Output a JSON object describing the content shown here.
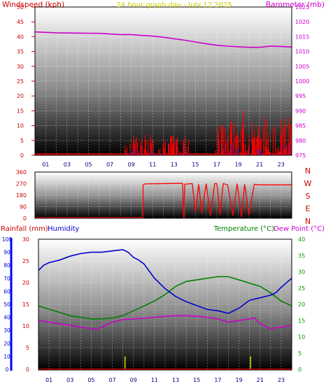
{
  "page_title": "24 hour graph day - July 12 2025",
  "labels": {
    "windspeed": "Windspeed (kph)",
    "barometer": "Barometer (mb)",
    "rainfall": "Rainfall (mm)",
    "humidity": "Humidity",
    "temperature": "Temperature (°C)",
    "dewpoint": "Dew Point (°C)"
  },
  "colors": {
    "windspeed": "#cc0000",
    "barometer": "#cc00cc",
    "humidity": "#0000cc",
    "temperature": "#008000",
    "dewpoint": "#cc00cc",
    "rainfall": "#cc0000",
    "title": "#cccc00",
    "tick_green": "#009900"
  },
  "x_hour_labels": [
    "01",
    "03",
    "05",
    "07",
    "09",
    "11",
    "13",
    "15",
    "17",
    "19",
    "21",
    "23"
  ],
  "chart_data": [
    {
      "type": "line",
      "name": "wind-barometer",
      "xlim": [
        0,
        24
      ],
      "left_axis": {
        "label": "Windspeed (kph)",
        "ticks": [
          0,
          5,
          10,
          15,
          20,
          25,
          30,
          35,
          40,
          45,
          50
        ],
        "range": [
          0,
          50
        ]
      },
      "right_axis": {
        "label": "Barometer (mb)",
        "ticks": [
          975,
          980,
          985,
          990,
          995,
          1000,
          1005,
          1010,
          1015,
          1020,
          1025
        ],
        "range": [
          975,
          1025
        ]
      },
      "barometer": {
        "x": [
          0,
          2,
          4,
          6,
          8,
          9,
          10,
          11,
          12,
          13,
          14,
          15,
          16,
          17,
          18,
          19,
          20,
          21,
          22,
          23,
          24
        ],
        "y": [
          1016.6,
          1016.3,
          1016.2,
          1016.1,
          1015.7,
          1015.7,
          1015.4,
          1015.2,
          1014.8,
          1014.3,
          1013.8,
          1013.2,
          1012.6,
          1012.1,
          1011.8,
          1011.6,
          1011.4,
          1011.4,
          1011.8,
          1011.7,
          1011.5
        ]
      },
      "wind_bursts": [
        {
          "from": 8.4,
          "to": 14.5,
          "max": 7
        },
        {
          "from": 16.8,
          "to": 24,
          "max": 13
        }
      ],
      "wind_peaks": [
        {
          "x": 17.5,
          "y": 10
        },
        {
          "x": 19.5,
          "y": 15
        },
        {
          "x": 20.3,
          "y": 11
        },
        {
          "x": 20.9,
          "y": 9
        }
      ]
    },
    {
      "type": "line",
      "name": "wind-direction",
      "xlim": [
        0,
        24
      ],
      "left_axis": {
        "ticks": [
          0,
          90,
          180,
          270,
          360
        ],
        "range": [
          0,
          360
        ]
      },
      "right_axis": {
        "ticks": [
          "N",
          "W",
          "S",
          "E",
          "N"
        ]
      },
      "direction": {
        "x": [
          0,
          10.1,
          10.1,
          10.3,
          13.8,
          13.9,
          14.0,
          14.7,
          15.0,
          15.3,
          15.6,
          16.0,
          16.4,
          16.8,
          17.0,
          17.3,
          17.6,
          18.0,
          18.5,
          18.9,
          19.3,
          19.6,
          20.0,
          20.5,
          21.0,
          24
        ],
        "y": [
          5,
          5,
          260,
          268,
          272,
          0,
          265,
          270,
          50,
          265,
          40,
          270,
          20,
          270,
          270,
          25,
          270,
          260,
          20,
          270,
          10,
          265,
          25,
          265,
          260,
          260
        ]
      }
    },
    {
      "type": "line",
      "name": "rain-humidity-temperature",
      "xlim": [
        0,
        24
      ],
      "rain_axis": {
        "label": "Rainfall (mm)",
        "ticks": [
          0,
          10,
          20,
          30,
          40,
          50,
          60,
          70,
          80,
          90,
          100
        ],
        "range": [
          0,
          100
        ]
      },
      "humidity_axis": {
        "label": "Humidity",
        "ticks": [
          0,
          5,
          10,
          15,
          20,
          25,
          30
        ],
        "range": [
          0,
          30
        ]
      },
      "temperature_axis": {
        "label": "Temperature (°C)",
        "ticks": [
          0,
          5,
          10,
          15,
          20,
          25,
          30,
          35,
          40
        ],
        "range": [
          0,
          40
        ]
      },
      "humidity": {
        "x": [
          0,
          0.5,
          1,
          2,
          3,
          4,
          5,
          6,
          7,
          8,
          8.5,
          9,
          9.5,
          10,
          11,
          12,
          13,
          14,
          15,
          16,
          17,
          18,
          19,
          20,
          21,
          22,
          22.5,
          23,
          24
        ],
        "y": [
          76,
          80,
          82,
          84,
          87,
          89,
          90,
          90,
          91,
          92,
          90,
          86,
          84,
          81,
          70,
          62,
          56,
          52,
          49,
          46,
          45,
          43,
          47,
          53,
          55,
          57,
          59,
          63,
          70
        ]
      },
      "temperature": {
        "x": [
          0,
          1,
          2,
          3,
          4,
          5,
          6,
          7,
          8,
          9,
          10,
          11,
          12,
          13,
          14,
          15,
          16,
          17,
          18,
          19,
          20,
          21,
          22,
          23,
          24
        ],
        "y": [
          19.5,
          18.5,
          17.5,
          16.5,
          16,
          15.5,
          15.5,
          15.8,
          16.5,
          18,
          19.5,
          21,
          23,
          25.5,
          27,
          27.5,
          28,
          28.5,
          28.5,
          27.5,
          26.5,
          25.5,
          23.5,
          21,
          19.5
        ]
      },
      "dewpoint": {
        "x": [
          0,
          1,
          2,
          3,
          4,
          5,
          5.5,
          6,
          7,
          8,
          9,
          10,
          11,
          12,
          13,
          14,
          15,
          16,
          17,
          18,
          19,
          20,
          20.5,
          21,
          22,
          23,
          24
        ],
        "y": [
          15,
          14.5,
          14,
          13.5,
          13,
          12.5,
          12.3,
          13,
          14.5,
          15.3,
          15.5,
          15.7,
          16,
          16.3,
          16.5,
          16.5,
          16.3,
          16,
          15.5,
          14.5,
          15,
          15.5,
          15.8,
          14,
          12.5,
          13,
          13.5
        ]
      },
      "rain_bars": [
        {
          "x": 8.2,
          "value": 3
        },
        {
          "x": 20.1,
          "value": 3
        }
      ]
    }
  ]
}
